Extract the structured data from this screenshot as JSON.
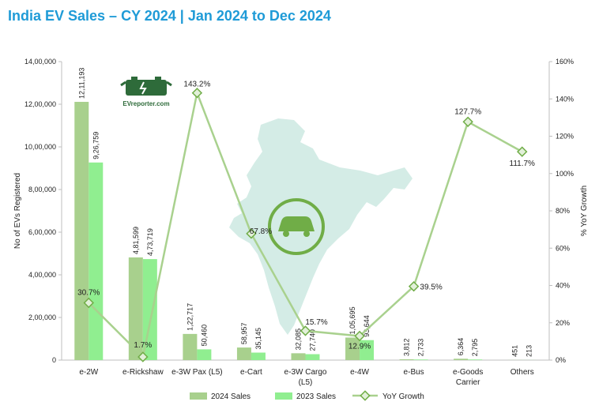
{
  "title": "India EV Sales – CY 2024 | Jan 2024 to Dec 2024",
  "logo": {
    "text": "EVreporter.com",
    "icon": "ev-battery-plug-icon"
  },
  "colors": {
    "series2024": "#a8d08d",
    "series2023": "#90ee90",
    "yoyLine": "#a9d18e",
    "yoyMarker": "#70ad47",
    "axis": "#bfbfbf",
    "map": "#d4ece6",
    "title": "#1f9bd7"
  },
  "chart_data": {
    "type": "bar",
    "title": "India EV Sales – CY 2024 | Jan 2024 to Dec 2024",
    "categories": [
      "e-2W",
      "e-Rickshaw",
      "e-3W Pax (L5)",
      "e-Cart",
      "e-3W Cargo\n(L5)",
      "e-4W",
      "e-Bus",
      "e-Goods\nCarrier",
      "Others"
    ],
    "series": [
      {
        "name": "2024 Sales",
        "values": [
          1211193,
          481599,
          122717,
          58957,
          32085,
          105695,
          3812,
          6364,
          451
        ],
        "labels": [
          "12,11,193",
          "4,81,599",
          "1,22,717",
          "58,957",
          "32,085",
          "1,05,695",
          "3,812",
          "6,364",
          "451"
        ]
      },
      {
        "name": "2023 Sales",
        "values": [
          926759,
          473719,
          50460,
          35145,
          27740,
          93644,
          2733,
          2795,
          213
        ],
        "labels": [
          "9,26,759",
          "4,73,719",
          "50,460",
          "35,145",
          "27,740",
          "93,644",
          "2,733",
          "2,795",
          "213"
        ]
      },
      {
        "name": "YoY Growth",
        "axis": "right",
        "values": [
          30.7,
          1.7,
          143.2,
          67.8,
          15.7,
          12.9,
          39.5,
          127.7,
          111.7
        ],
        "labels": [
          "30.7%",
          "1.7%",
          "143.2%",
          "67.8%",
          "15.7%",
          "12.9%",
          "39.5%",
          "127.7%",
          "111.7%"
        ]
      }
    ],
    "ylabel": "No of EVs Registered",
    "y2label": "% YoY  Growth",
    "ylim": [
      0,
      1400000
    ],
    "y2lim": [
      0,
      160
    ],
    "yticks": [
      "0",
      "2,00,000",
      "4,00,000",
      "6,00,000",
      "8,00,000",
      "10,00,000",
      "12,00,000",
      "14,00,000"
    ],
    "y2ticks": [
      "0%",
      "20%",
      "40%",
      "60%",
      "80%",
      "100%",
      "120%",
      "140%",
      "160%"
    ],
    "grid": false,
    "legend": "bottom-center"
  }
}
